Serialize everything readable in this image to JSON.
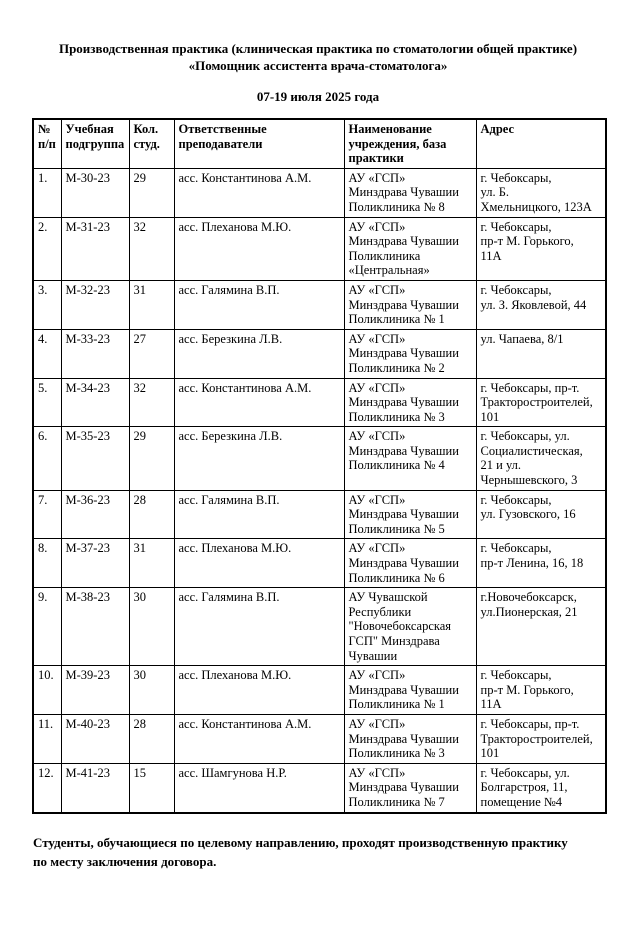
{
  "document": {
    "title": "Производственная практика (клиническая практика по стоматологии общей практике)\n«Помощник ассистента врача-стоматолога»",
    "date_range": "07-19 июля 2025 года",
    "footer_note": "Студенты, обучающиеся по целевому направлению, проходят производственную практику\nпо месту заключения договора."
  },
  "table": {
    "headers": {
      "num": "№\nп/п",
      "subgroup": "Учебная\nподгруппа",
      "count": "Кол.\nстуд.",
      "teachers": "Ответственные\nпреподаватели",
      "institution": "Наименование\nучреждения, база\nпрактики",
      "address": "Адрес"
    },
    "rows": [
      {
        "cells": [
          "1.",
          "М-30-23",
          "29",
          "асс. Константинова А.М.",
          "АУ «ГСП»\nМинздрава Чувашии\nПоликлиника № 8",
          "г. Чебоксары,\nул. Б.\nХмельницкого, 123А"
        ]
      },
      {
        "cells": [
          "2.",
          "М-31-23",
          "32",
          "асс. Плеханова М.Ю.",
          "АУ «ГСП»\nМинздрава Чувашии\nПоликлиника\n«Центральная»",
          "г. Чебоксары,\nпр-т М. Горького,\n11А"
        ]
      },
      {
        "cells": [
          "3.",
          "М-32-23",
          "31",
          "асс. Галямина В.П.",
          "АУ «ГСП»\nМинздрава Чувашии\nПоликлиника № 1",
          "г. Чебоксары,\nул. З. Яковлевой, 44"
        ]
      },
      {
        "cells": [
          "4.",
          "М-33-23",
          "27",
          "асс. Березкина Л.В.",
          "АУ «ГСП»\nМинздрава Чувашии\nПоликлиника № 2",
          "ул. Чапаева, 8/1"
        ]
      },
      {
        "cells": [
          "5.",
          "М-34-23",
          "32",
          "асс. Константинова А.М.",
          "АУ «ГСП»\nМинздрава Чувашии\nПоликлиника № 3",
          "г. Чебоксары, пр-т.\nТракторостроителей,\n101"
        ]
      },
      {
        "cells": [
          "6.",
          "М-35-23",
          "29",
          "асс. Березкина Л.В.",
          "АУ «ГСП»\nМинздрава Чувашии\nПоликлиника № 4",
          "г. Чебоксары, ул.\nСоциалистическая,\n21 и ул.\nЧернышевского, 3"
        ]
      },
      {
        "cells": [
          "7.",
          "М-36-23",
          "28",
          "асс. Галямина В.П.",
          "АУ «ГСП»\nМинздрава Чувашии\nПоликлиника № 5",
          "г. Чебоксары,\nул. Гузовского, 16"
        ]
      },
      {
        "cells": [
          "8.",
          "М-37-23",
          "31",
          "асс. Плеханова М.Ю.",
          "АУ «ГСП»\nМинздрава Чувашии\nПоликлиника № 6",
          "г. Чебоксары,\nпр-т Ленина, 16, 18"
        ]
      },
      {
        "cells": [
          "9.",
          "М-38-23",
          "30",
          "асс. Галямина В.П.",
          "АУ Чувашской\nРеспублики\n\"Новочебоксарская\nГСП\" Минздрава\nЧувашии",
          "г.Новочебоксарск,\nул.Пионерская, 21"
        ]
      },
      {
        "cells": [
          "10.",
          "М-39-23",
          "30",
          "асс. Плеханова М.Ю.",
          "АУ «ГСП»\nМинздрава Чувашии\nПоликлиника № 1",
          "г. Чебоксары,\nпр-т М. Горького,\n11А"
        ]
      },
      {
        "cells": [
          "11.",
          "М-40-23",
          "28",
          "асс. Константинова А.М.",
          "АУ «ГСП»\nМинздрава Чувашии\nПоликлиника № 3",
          "г. Чебоксары, пр-т.\nТракторостроителей,\n101"
        ]
      },
      {
        "cells": [
          "12.",
          "М-41-23",
          "15",
          "асс. Шамгунова Н.Р.",
          "АУ «ГСП»\nМинздрава Чувашии\nПоликлиника № 7",
          "г. Чебоксары, ул.\nБолгарстроя, 11,\nпомещение №4"
        ]
      }
    ]
  }
}
